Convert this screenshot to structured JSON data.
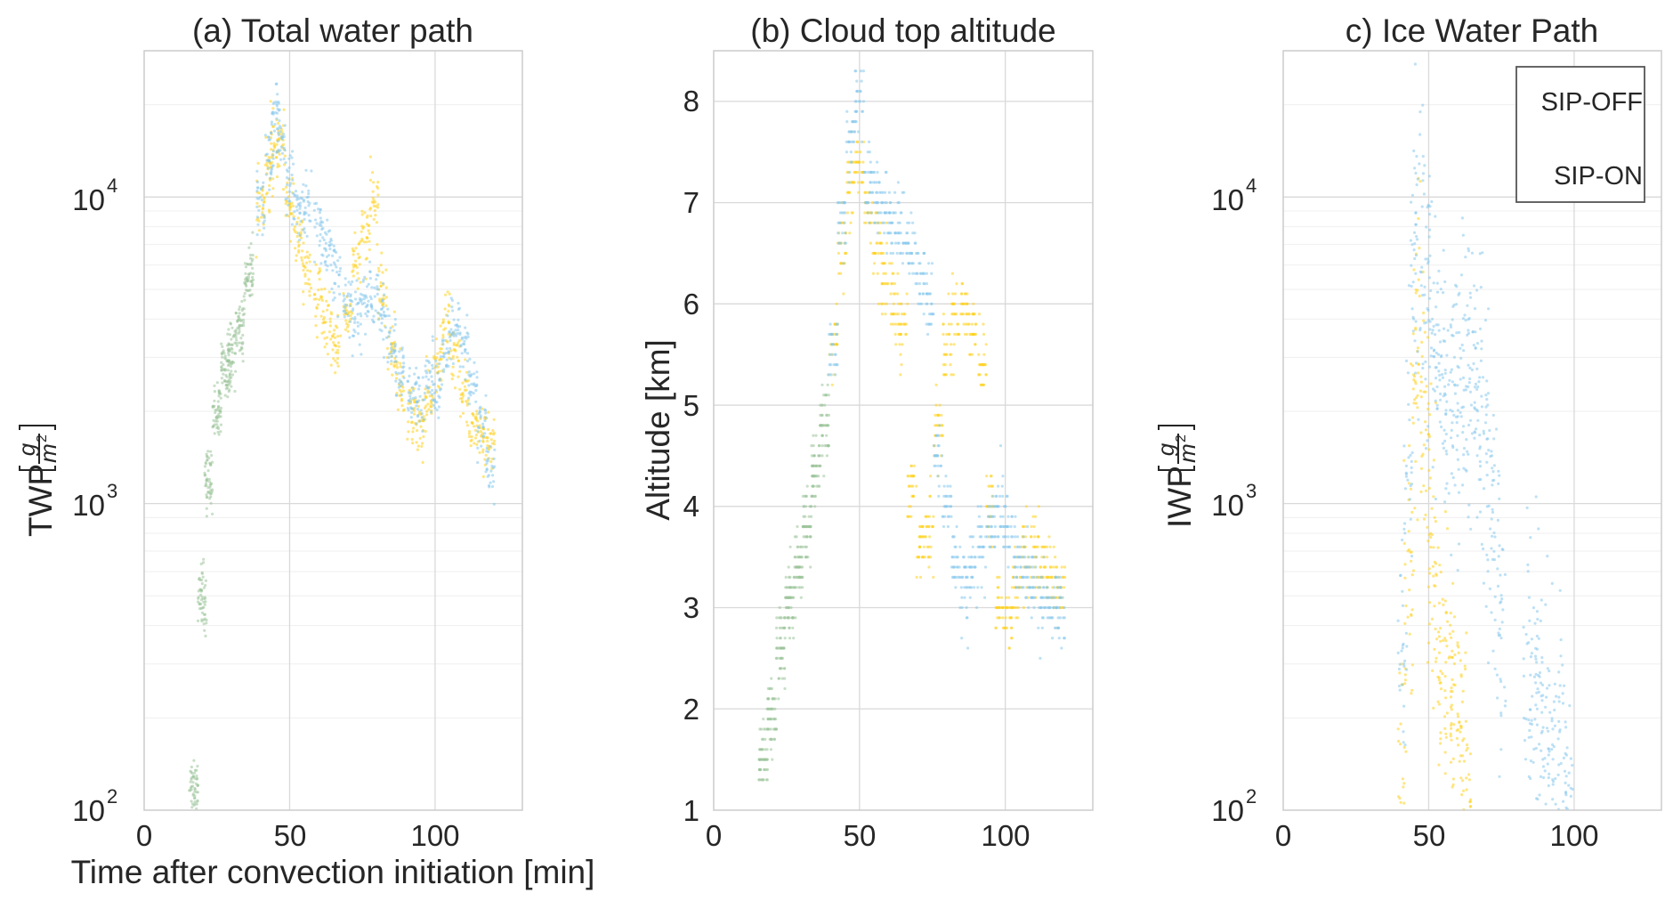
{
  "colors": {
    "sip_off": "#ffd21f",
    "sip_on": "#89c9ec",
    "overlap": "#9cc49a",
    "grid": "#d9d9d9",
    "minor_grid": "#efefef",
    "frame": "#cccccc",
    "text": "#262626"
  },
  "legend": {
    "items": [
      {
        "label": "SIP-OFF",
        "color": "#ffd21f"
      },
      {
        "label": "SIP-ON",
        "color": "#89c9ec"
      }
    ]
  },
  "chart_data": [
    {
      "type": "scatter",
      "title": "(a) Total water path",
      "xlabel": "Time after convection initiation [min]",
      "ylabel": "TWP",
      "ylabel_unit": {
        "numerator": "g",
        "denominator": "m",
        "denominator_exp": "2"
      },
      "xlim": [
        0,
        130
      ],
      "ylim": [
        100,
        30000
      ],
      "yscale": "log",
      "grid": true,
      "xticks": [
        "0",
        "50",
        "100"
      ],
      "yticks": [
        {
          "base": "10",
          "exp": "2"
        },
        {
          "base": "10",
          "exp": "3"
        },
        {
          "base": "10",
          "exp": "4"
        }
      ],
      "series": [
        {
          "name": "SIP-OFF",
          "color": "#ffd21f",
          "x": [
            17,
            20,
            22,
            25,
            28,
            30,
            33,
            36,
            40,
            43,
            45,
            47,
            50,
            53,
            56,
            60,
            63,
            66,
            70,
            73,
            76,
            79,
            82,
            85,
            88,
            92,
            95,
            98,
            101,
            104,
            107,
            110,
            113,
            116,
            119
          ],
          "y": [
            120,
            500,
            1200,
            2000,
            2600,
            3000,
            3800,
            5500,
            9500,
            12000,
            15000,
            14000,
            10000,
            7000,
            5500,
            4600,
            3800,
            3300,
            4200,
            6000,
            7500,
            9500,
            5000,
            3200,
            2400,
            2000,
            1800,
            2100,
            2900,
            3800,
            3000,
            2200,
            1800,
            1700,
            1600
          ]
        },
        {
          "name": "SIP-ON",
          "color": "#89c9ec",
          "x": [
            17,
            20,
            22,
            25,
            28,
            30,
            33,
            36,
            40,
            43,
            45,
            47,
            50,
            53,
            56,
            60,
            63,
            66,
            70,
            73,
            76,
            79,
            82,
            85,
            88,
            92,
            95,
            98,
            101,
            104,
            107,
            110,
            113,
            116,
            119
          ],
          "y": [
            120,
            500,
            1200,
            2000,
            2600,
            3000,
            3800,
            5500,
            9500,
            13000,
            18000,
            16000,
            11000,
            9000,
            9500,
            8000,
            6500,
            5500,
            4500,
            4200,
            4500,
            5000,
            4200,
            3300,
            2600,
            2200,
            2200,
            2600,
            2500,
            3000,
            3800,
            3200,
            2400,
            1800,
            1300
          ]
        }
      ]
    },
    {
      "type": "scatter",
      "title": "(b) Cloud top altitude",
      "xlabel": "",
      "ylabel": "Altitude [km]",
      "xlim": [
        0,
        130
      ],
      "ylim": [
        1,
        8.5
      ],
      "yscale": "linear",
      "grid": true,
      "xticks": [
        "0",
        "50",
        "100"
      ],
      "yticks": [
        "1",
        "2",
        "3",
        "4",
        "5",
        "6",
        "7",
        "8"
      ],
      "series": [
        {
          "name": "SIP-OFF",
          "color": "#ffd21f",
          "x": [
            17,
            20,
            23,
            26,
            29,
            32,
            35,
            38,
            41,
            44,
            47,
            50,
            53,
            56,
            59,
            62,
            65,
            68,
            71,
            74,
            77,
            80,
            83,
            86,
            89,
            92,
            95,
            98,
            101,
            104,
            107,
            110,
            113,
            116,
            119
          ],
          "y": [
            1.5,
            1.9,
            2.6,
            3.0,
            3.4,
            3.8,
            4.3,
            4.8,
            5.6,
            6.5,
            7.1,
            7.4,
            6.9,
            6.6,
            6.3,
            6.0,
            5.8,
            4.2,
            3.6,
            3.8,
            4.8,
            5.6,
            5.9,
            6.0,
            5.8,
            5.4,
            4.0,
            3.0,
            2.9,
            3.2,
            3.5,
            3.6,
            3.4,
            3.3,
            3.2
          ]
        },
        {
          "name": "SIP-ON",
          "color": "#89c9ec",
          "x": [
            17,
            20,
            23,
            26,
            29,
            32,
            35,
            38,
            41,
            44,
            47,
            50,
            53,
            56,
            59,
            62,
            65,
            68,
            71,
            74,
            77,
            80,
            83,
            86,
            89,
            92,
            95,
            98,
            101,
            104,
            107,
            110,
            113,
            116,
            119
          ],
          "y": [
            1.5,
            1.9,
            2.6,
            3.0,
            3.4,
            3.8,
            4.3,
            4.8,
            5.6,
            6.8,
            7.6,
            8.0,
            7.2,
            7.0,
            6.9,
            6.8,
            6.7,
            6.5,
            6.2,
            6.0,
            4.5,
            4.0,
            3.5,
            3.2,
            3.4,
            3.6,
            3.8,
            3.9,
            3.8,
            3.5,
            3.3,
            3.2,
            3.1,
            3.0,
            3.0
          ]
        }
      ]
    },
    {
      "type": "scatter",
      "title": "c) Ice Water Path",
      "xlabel": "",
      "ylabel": "IWP",
      "ylabel_unit": {
        "numerator": "g",
        "denominator": "m",
        "denominator_exp": "2"
      },
      "xlim": [
        0,
        130
      ],
      "ylim": [
        100,
        30000
      ],
      "yscale": "log",
      "grid": true,
      "xticks": [
        "0",
        "50",
        "100"
      ],
      "yticks": [
        {
          "base": "10",
          "exp": "2"
        },
        {
          "base": "10",
          "exp": "3"
        },
        {
          "base": "10",
          "exp": "4"
        }
      ],
      "series": [
        {
          "name": "SIP-OFF",
          "color": "#ffd21f",
          "x": [
            41,
            43,
            45,
            47,
            49,
            51,
            53,
            55,
            57,
            59,
            61,
            63
          ],
          "y": [
            150,
            600,
            2000,
            4000,
            1500,
            700,
            400,
            300,
            250,
            200,
            160,
            120
          ]
        },
        {
          "name": "SIP-ON",
          "color": "#89c9ec",
          "x": [
            41,
            43,
            45,
            47,
            49,
            51,
            53,
            55,
            57,
            59,
            61,
            63,
            65,
            67,
            69,
            71,
            73,
            75,
            84,
            86,
            88,
            90,
            92,
            94,
            96,
            98
          ],
          "y": [
            300,
            1500,
            6000,
            11000,
            5000,
            3500,
            3000,
            2500,
            2200,
            2000,
            2300,
            2600,
            2400,
            2100,
            1800,
            1200,
            700,
            400,
            300,
            260,
            220,
            180,
            150,
            130,
            115,
            105
          ]
        }
      ]
    }
  ]
}
